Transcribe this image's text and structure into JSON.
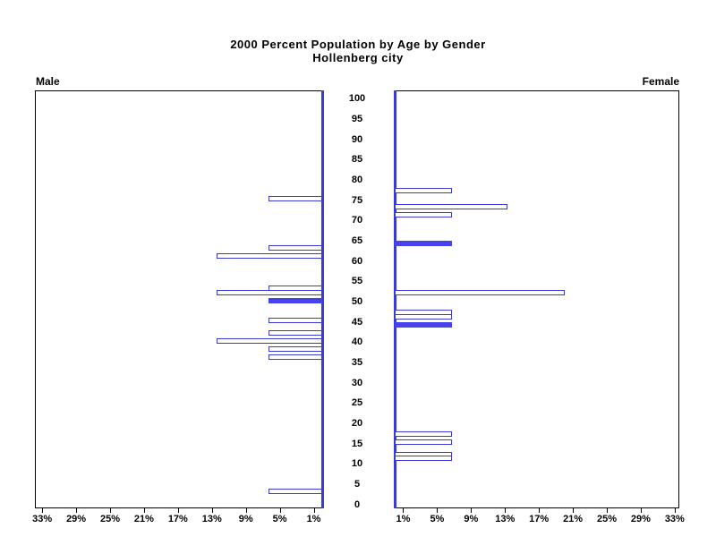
{
  "title": {
    "line1": "2000 Percent Population by Age by Gender",
    "line2": "Hollenberg city"
  },
  "panels": {
    "male_label": "Male",
    "female_label": "Female"
  },
  "chart_data": {
    "type": "bar",
    "variant": "population_pyramid",
    "title": "2000 Percent Population by Age by Gender",
    "subtitle": "Hollenberg city",
    "legend": {
      "left_label": "Male",
      "right_label": "Female"
    },
    "age_axis": {
      "min": 0,
      "max": 100,
      "tick_step": 5,
      "ticks": [
        0,
        5,
        10,
        15,
        20,
        25,
        30,
        35,
        40,
        45,
        50,
        55,
        60,
        65,
        70,
        75,
        80,
        85,
        90,
        95,
        100
      ]
    },
    "percent_axis": {
      "min": 0,
      "max": 34,
      "unit": "%",
      "ticks": [
        1,
        5,
        9,
        13,
        17,
        21,
        25,
        29,
        33
      ]
    },
    "series": [
      {
        "name": "Male",
        "side": "left",
        "bars": [
          {
            "age": 75,
            "percent": 6.3,
            "solid": false
          },
          {
            "age": 63,
            "percent": 6.3,
            "solid": false
          },
          {
            "age": 61,
            "percent": 12.5,
            "solid": false
          },
          {
            "age": 53,
            "percent": 6.3,
            "solid": false
          },
          {
            "age": 52,
            "percent": 12.5,
            "solid": false
          },
          {
            "age": 50,
            "percent": 6.3,
            "solid": true
          },
          {
            "age": 45,
            "percent": 6.3,
            "solid": false
          },
          {
            "age": 42,
            "percent": 6.3,
            "solid": false
          },
          {
            "age": 40,
            "percent": 12.5,
            "solid": false
          },
          {
            "age": 38,
            "percent": 6.3,
            "solid": false
          },
          {
            "age": 36,
            "percent": 6.3,
            "solid": false
          },
          {
            "age": 3,
            "percent": 6.3,
            "solid": false
          }
        ]
      },
      {
        "name": "Female",
        "side": "right",
        "bars": [
          {
            "age": 77,
            "percent": 6.7,
            "solid": false
          },
          {
            "age": 73,
            "percent": 13.3,
            "solid": false
          },
          {
            "age": 71,
            "percent": 6.7,
            "solid": false
          },
          {
            "age": 64,
            "percent": 6.7,
            "solid": true
          },
          {
            "age": 52,
            "percent": 20.0,
            "solid": false
          },
          {
            "age": 47,
            "percent": 6.7,
            "solid": false
          },
          {
            "age": 46,
            "percent": 6.7,
            "solid": false
          },
          {
            "age": 44,
            "percent": 6.7,
            "solid": true
          },
          {
            "age": 17,
            "percent": 6.7,
            "solid": false
          },
          {
            "age": 15,
            "percent": 6.7,
            "solid": false
          },
          {
            "age": 12,
            "percent": 6.7,
            "solid": false
          },
          {
            "age": 11,
            "percent": 6.7,
            "solid": false
          }
        ]
      }
    ],
    "colors": {
      "bar_outline": "#3a3ad4",
      "bar_fill_solid": "#4742ec",
      "axis_line": "#3a3ad4",
      "frame": "#000000"
    }
  }
}
